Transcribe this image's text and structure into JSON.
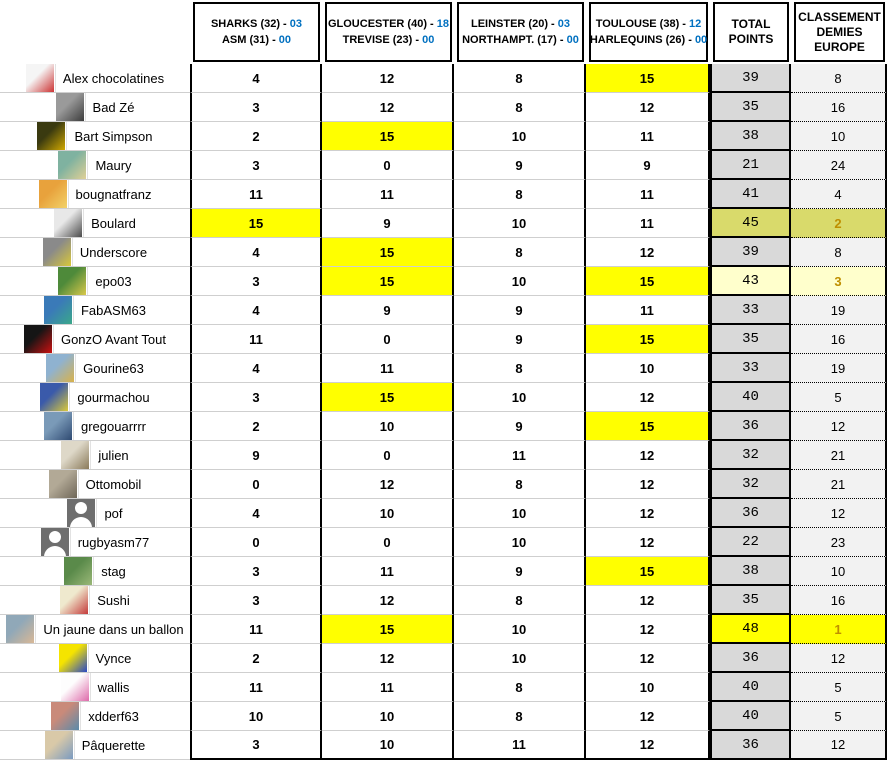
{
  "header": {
    "matches": [
      {
        "t1": "SHARKS (32) -",
        "s1": "03",
        "t2": "ASM (31) -",
        "s2": "00"
      },
      {
        "t1": "GLOUCESTER (40) -",
        "s1": "18",
        "t2": "TREVISE (23) -",
        "s2": "00"
      },
      {
        "t1": "LEINSTER (20) -",
        "s1": "03",
        "t2": "NORTHAMPT. (17) -",
        "s2": "00"
      },
      {
        "t1": "TOULOUSE (38) -",
        "s1": "12",
        "t2": "HARLEQUINS (26) -",
        "s2": "00"
      }
    ],
    "total_label": "TOTAL POINTS",
    "rank_label": "CLASSEMENT DEMIES EUROPE"
  },
  "colors": {
    "highlight_yellow": "#ffff00",
    "first_place_bg": "#ffff00",
    "second_place_bg": "#d9da6b",
    "third_place_bg": "#ffffcc",
    "total_bg": "#d9d9d9",
    "rank_bg": "#f2f2f2",
    "score_blue": "#0070c0",
    "rank_gold": "#bf8f00"
  },
  "rows": [
    {
      "name": "Alex chocolatines",
      "avatar": {
        "c1": "#f5f5f5",
        "c2": "#cc3333"
      },
      "scores": [
        {
          "v": "4"
        },
        {
          "v": "12"
        },
        {
          "v": "8"
        },
        {
          "v": "15",
          "hl": "y"
        }
      ],
      "total": "39",
      "rank": "8"
    },
    {
      "name": "Bad Zé",
      "avatar": {
        "c1": "#9a9a9a",
        "c2": "#3c3c3c"
      },
      "scores": [
        {
          "v": "3"
        },
        {
          "v": "12"
        },
        {
          "v": "8"
        },
        {
          "v": "12"
        }
      ],
      "total": "35",
      "rank": "16"
    },
    {
      "name": "Bart Simpson",
      "avatar": {
        "c1": "#3a3a10",
        "c2": "#d0a800"
      },
      "scores": [
        {
          "v": "2"
        },
        {
          "v": "15",
          "hl": "y"
        },
        {
          "v": "10"
        },
        {
          "v": "11"
        }
      ],
      "total": "38",
      "rank": "10"
    },
    {
      "name": "Maury",
      "avatar": {
        "c1": "#7fb2a0",
        "c2": "#e0d096"
      },
      "scores": [
        {
          "v": "3"
        },
        {
          "v": "0"
        },
        {
          "v": "9"
        },
        {
          "v": "9"
        }
      ],
      "total": "21",
      "rank": "24"
    },
    {
      "name": "bougnatfranz",
      "avatar": {
        "c1": "#e8a23c",
        "c2": "#f2d269"
      },
      "scores": [
        {
          "v": "11"
        },
        {
          "v": "11"
        },
        {
          "v": "8"
        },
        {
          "v": "11"
        }
      ],
      "total": "41",
      "rank": "4"
    },
    {
      "name": "Boulard",
      "avatar": {
        "c1": "#e8e8e8",
        "c2": "#4a4a4a"
      },
      "scores": [
        {
          "v": "15",
          "hl": "y"
        },
        {
          "v": "9"
        },
        {
          "v": "10"
        },
        {
          "v": "11"
        }
      ],
      "total": "45",
      "rank": "2",
      "tone": "top2"
    },
    {
      "name": "Underscore",
      "avatar": {
        "c1": "#8a8a8a",
        "c2": "#d8c83a"
      },
      "scores": [
        {
          "v": "4"
        },
        {
          "v": "15",
          "hl": "y"
        },
        {
          "v": "8"
        },
        {
          "v": "12"
        }
      ],
      "total": "39",
      "rank": "8"
    },
    {
      "name": "epo03",
      "avatar": {
        "c1": "#4e8a3a",
        "c2": "#d8c84a"
      },
      "scores": [
        {
          "v": "3"
        },
        {
          "v": "15",
          "hl": "y"
        },
        {
          "v": "10"
        },
        {
          "v": "15",
          "hl": "y"
        }
      ],
      "total": "43",
      "rank": "3",
      "tone": "top3"
    },
    {
      "name": "FabASM63",
      "avatar": {
        "c1": "#3a7ab8",
        "c2": "#3aa88a"
      },
      "scores": [
        {
          "v": "4"
        },
        {
          "v": "9"
        },
        {
          "v": "9"
        },
        {
          "v": "11"
        }
      ],
      "total": "33",
      "rank": "19"
    },
    {
      "name": "GonzO Avant Tout",
      "avatar": {
        "c1": "#151515",
        "c2": "#cc1111"
      },
      "scores": [
        {
          "v": "11"
        },
        {
          "v": "0"
        },
        {
          "v": "9"
        },
        {
          "v": "15",
          "hl": "y"
        }
      ],
      "total": "35",
      "rank": "16"
    },
    {
      "name": "Gourine63",
      "avatar": {
        "c1": "#8fb2d0",
        "c2": "#d9b24a"
      },
      "scores": [
        {
          "v": "4"
        },
        {
          "v": "11"
        },
        {
          "v": "8"
        },
        {
          "v": "10"
        }
      ],
      "total": "33",
      "rank": "19"
    },
    {
      "name": "gourmachou",
      "avatar": {
        "c1": "#3a5aaa",
        "c2": "#d9c93a"
      },
      "scores": [
        {
          "v": "3"
        },
        {
          "v": "15",
          "hl": "y"
        },
        {
          "v": "10"
        },
        {
          "v": "12"
        }
      ],
      "total": "40",
      "rank": "5"
    },
    {
      "name": "gregouarrrr",
      "avatar": {
        "c1": "#7a9ab8",
        "c2": "#2f4a72"
      },
      "scores": [
        {
          "v": "2"
        },
        {
          "v": "10"
        },
        {
          "v": "9"
        },
        {
          "v": "15",
          "hl": "y"
        }
      ],
      "total": "36",
      "rank": "12"
    },
    {
      "name": "julien",
      "avatar": {
        "c1": "#ded8c8",
        "c2": "#8a7a5a"
      },
      "scores": [
        {
          "v": "9"
        },
        {
          "v": "0"
        },
        {
          "v": "11"
        },
        {
          "v": "12"
        }
      ],
      "total": "32",
      "rank": "21"
    },
    {
      "name": "Ottomobil",
      "avatar": {
        "c1": "#b2a996",
        "c2": "#6f6758"
      },
      "scores": [
        {
          "v": "0"
        },
        {
          "v": "12"
        },
        {
          "v": "8"
        },
        {
          "v": "12"
        }
      ],
      "total": "32",
      "rank": "21"
    },
    {
      "name": "pof",
      "avatar": {
        "sil": true
      },
      "scores": [
        {
          "v": "4"
        },
        {
          "v": "10"
        },
        {
          "v": "10"
        },
        {
          "v": "12"
        }
      ],
      "total": "36",
      "rank": "12"
    },
    {
      "name": "rugbyasm77",
      "avatar": {
        "sil": true
      },
      "scores": [
        {
          "v": "0"
        },
        {
          "v": "0"
        },
        {
          "v": "10"
        },
        {
          "v": "12"
        }
      ],
      "total": "22",
      "rank": "23"
    },
    {
      "name": "stag",
      "avatar": {
        "c1": "#5a8a4a",
        "c2": "#9ab878"
      },
      "scores": [
        {
          "v": "3"
        },
        {
          "v": "11"
        },
        {
          "v": "9"
        },
        {
          "v": "15",
          "hl": "y"
        }
      ],
      "total": "38",
      "rank": "10"
    },
    {
      "name": "Sushi",
      "avatar": {
        "c1": "#efe9ce",
        "c2": "#c43a3a"
      },
      "scores": [
        {
          "v": "3"
        },
        {
          "v": "12"
        },
        {
          "v": "8"
        },
        {
          "v": "12"
        }
      ],
      "total": "35",
      "rank": "16"
    },
    {
      "name": "Un jaune dans un ballon",
      "avatar": {
        "c1": "#90a8b8",
        "c2": "#d9b896"
      },
      "scores": [
        {
          "v": "11"
        },
        {
          "v": "15",
          "hl": "y"
        },
        {
          "v": "10"
        },
        {
          "v": "12"
        }
      ],
      "total": "48",
      "rank": "1",
      "tone": "top1"
    },
    {
      "name": "Vynce",
      "avatar": {
        "c1": "#f5e400",
        "c2": "#2a48c8"
      },
      "scores": [
        {
          "v": "2"
        },
        {
          "v": "12"
        },
        {
          "v": "10"
        },
        {
          "v": "12"
        }
      ],
      "total": "36",
      "rank": "12"
    },
    {
      "name": "wallis",
      "avatar": {
        "c1": "#fdfdfd",
        "c2": "#de6aaa"
      },
      "scores": [
        {
          "v": "11"
        },
        {
          "v": "11"
        },
        {
          "v": "8"
        },
        {
          "v": "10"
        }
      ],
      "total": "40",
      "rank": "5"
    },
    {
      "name": "xdderf63",
      "avatar": {
        "c1": "#c98a7a",
        "c2": "#5a8aaa"
      },
      "scores": [
        {
          "v": "10"
        },
        {
          "v": "10"
        },
        {
          "v": "8"
        },
        {
          "v": "12"
        }
      ],
      "total": "40",
      "rank": "5"
    },
    {
      "name": "Pâquerette",
      "avatar": {
        "c1": "#d9c9a8",
        "c2": "#7a9ac0"
      },
      "scores": [
        {
          "v": "3"
        },
        {
          "v": "10"
        },
        {
          "v": "11"
        },
        {
          "v": "12"
        }
      ],
      "total": "36",
      "rank": "12"
    }
  ]
}
